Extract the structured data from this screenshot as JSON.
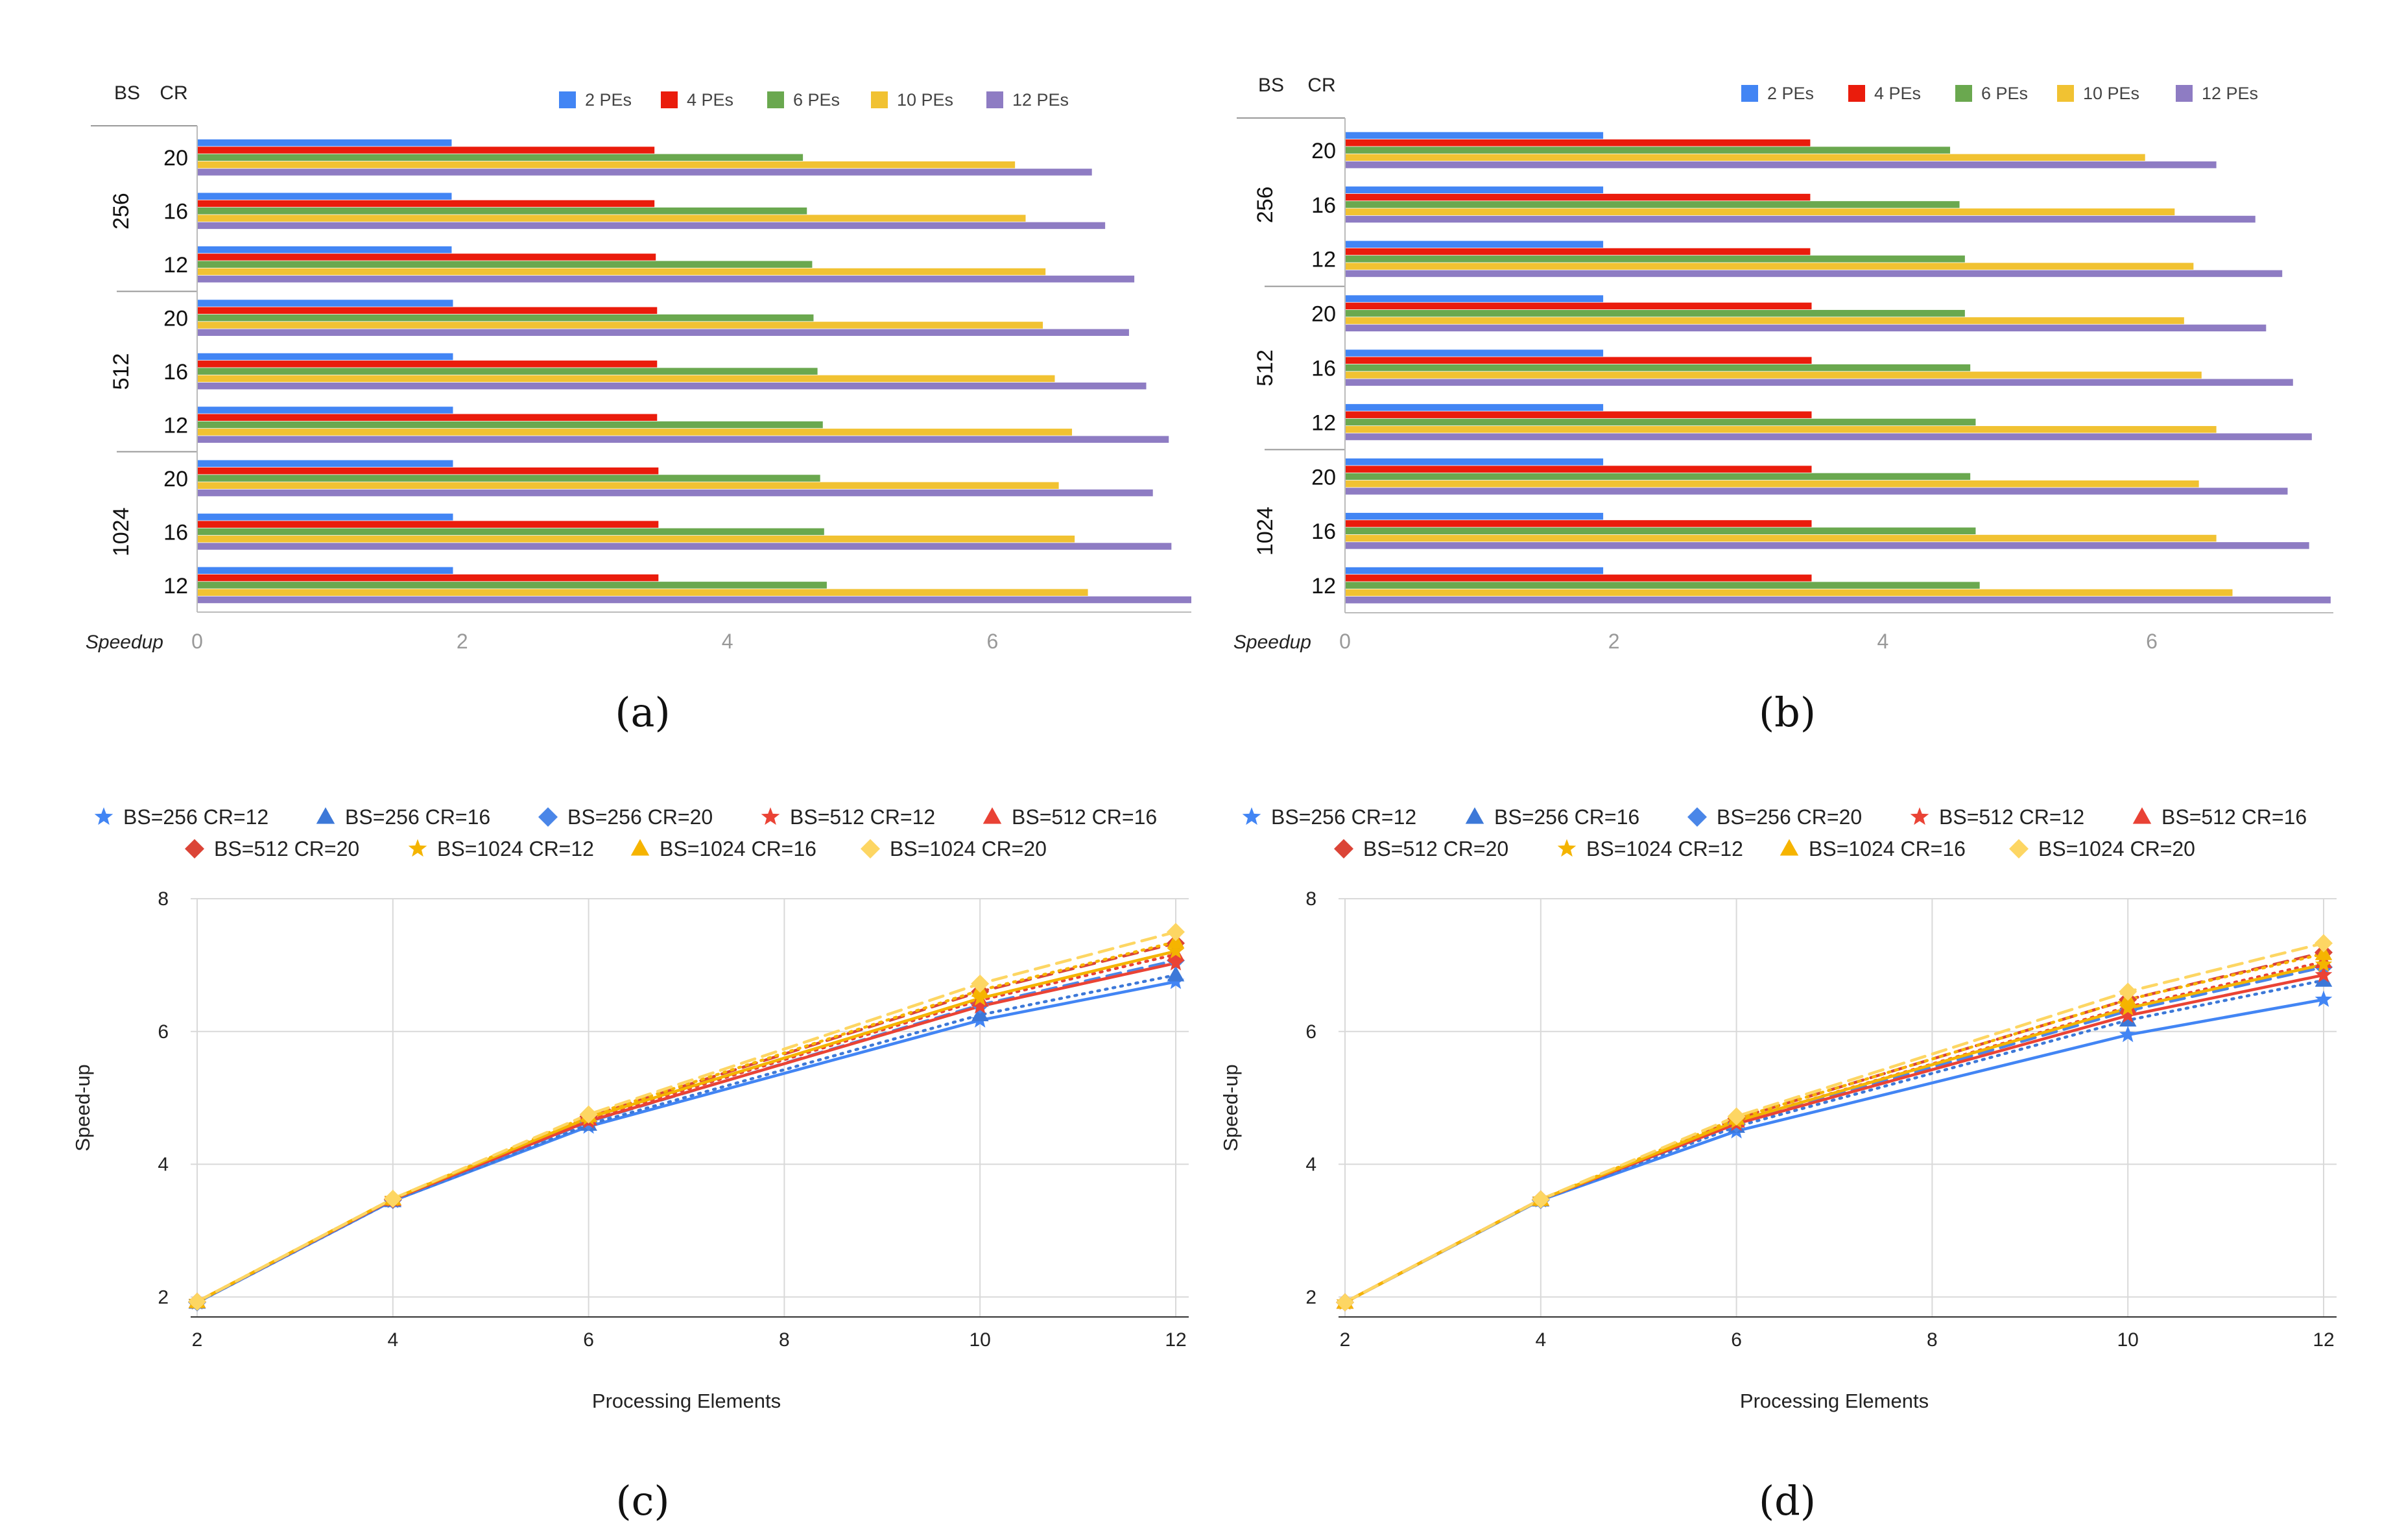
{
  "chart_data": [
    {
      "id": "a",
      "type": "bar",
      "orientation": "horizontal",
      "caption": "(a)",
      "group_header": "BS",
      "category_header": "CR",
      "xlabel": "Speedup",
      "xlim": [
        0,
        7.5
      ],
      "xticks": [
        "0",
        "2",
        "4",
        "6"
      ],
      "groups": [
        {
          "label": "256",
          "rows": [
            {
              "label": "20",
              "values": [
                1.92,
                3.45,
                4.57,
                6.17,
                6.75
              ]
            },
            {
              "label": "16",
              "values": [
                1.92,
                3.45,
                4.6,
                6.25,
                6.85
              ]
            },
            {
              "label": "12",
              "values": [
                1.92,
                3.46,
                4.64,
                6.4,
                7.07
              ]
            }
          ]
        },
        {
          "label": "512",
          "rows": [
            {
              "label": "20",
              "values": [
                1.93,
                3.47,
                4.65,
                6.38,
                7.03
              ]
            },
            {
              "label": "16",
              "values": [
                1.93,
                3.47,
                4.68,
                6.47,
                7.16
              ]
            },
            {
              "label": "12",
              "values": [
                1.93,
                3.47,
                4.72,
                6.6,
                7.33
              ]
            }
          ]
        },
        {
          "label": "1024",
          "rows": [
            {
              "label": "20",
              "values": [
                1.93,
                3.48,
                4.7,
                6.5,
                7.21
              ]
            },
            {
              "label": "16",
              "values": [
                1.93,
                3.48,
                4.73,
                6.62,
                7.35
              ]
            },
            {
              "label": "12",
              "values": [
                1.93,
                3.48,
                4.75,
                6.72,
                7.5
              ]
            }
          ]
        }
      ],
      "series": [
        {
          "name": "2 PEs",
          "color": "#4285f4"
        },
        {
          "name": "4 PEs",
          "color": "#ea1c0c"
        },
        {
          "name": "6 PEs",
          "color": "#6aa84f"
        },
        {
          "name": "10 PEs",
          "color": "#f1c232"
        },
        {
          "name": "12 PEs",
          "color": "#8e7cc3"
        }
      ]
    },
    {
      "id": "b",
      "type": "bar",
      "orientation": "horizontal",
      "caption": "(b)",
      "group_header": "BS",
      "category_header": "CR",
      "xlabel": "Speedup",
      "xlim": [
        0,
        7.35
      ],
      "xticks": [
        "0",
        "2",
        "4",
        "6"
      ],
      "groups": [
        {
          "label": "256",
          "rows": [
            {
              "label": "20",
              "values": [
                1.92,
                3.46,
                4.5,
                5.95,
                6.48
              ]
            },
            {
              "label": "16",
              "values": [
                1.92,
                3.46,
                4.57,
                6.17,
                6.77
              ]
            },
            {
              "label": "12",
              "values": [
                1.92,
                3.46,
                4.61,
                6.31,
                6.97
              ]
            }
          ]
        },
        {
          "label": "512",
          "rows": [
            {
              "label": "20",
              "values": [
                1.92,
                3.47,
                4.61,
                6.24,
                6.85
              ]
            },
            {
              "label": "16",
              "values": [
                1.92,
                3.47,
                4.65,
                6.37,
                7.05
              ]
            },
            {
              "label": "12",
              "values": [
                1.92,
                3.47,
                4.69,
                6.48,
                7.19
              ]
            }
          ]
        },
        {
          "label": "1024",
          "rows": [
            {
              "label": "20",
              "values": [
                1.92,
                3.47,
                4.65,
                6.35,
                7.01
              ]
            },
            {
              "label": "16",
              "values": [
                1.92,
                3.47,
                4.69,
                6.48,
                7.17
              ]
            },
            {
              "label": "12",
              "values": [
                1.92,
                3.47,
                4.72,
                6.6,
                7.33
              ]
            }
          ]
        }
      ],
      "series": [
        {
          "name": "2 PEs",
          "color": "#4285f4"
        },
        {
          "name": "4 PEs",
          "color": "#ea1c0c"
        },
        {
          "name": "6 PEs",
          "color": "#6aa84f"
        },
        {
          "name": "10 PEs",
          "color": "#f1c232"
        },
        {
          "name": "12 PEs",
          "color": "#8e7cc3"
        }
      ]
    },
    {
      "id": "c",
      "type": "line",
      "caption": "(c)",
      "xlabel": "Processing Elements",
      "ylabel": "Speed-up",
      "x": [
        2,
        4,
        6,
        10,
        12
      ],
      "xlim": [
        2,
        12
      ],
      "ylim": [
        1.7,
        8
      ],
      "xticks": [
        2,
        4,
        6,
        8,
        10,
        12
      ],
      "yticks": [
        2,
        4,
        6,
        8
      ],
      "series": [
        {
          "name": "BS=256 CR=12",
          "color": "#4285f4",
          "marker": "star",
          "dash": "solid",
          "values": [
            1.92,
            3.45,
            4.57,
            6.17,
            6.75
          ]
        },
        {
          "name": "BS=256 CR=16",
          "color": "#3c78d8",
          "marker": "triangle",
          "dash": "dotted",
          "values": [
            1.92,
            3.45,
            4.6,
            6.25,
            6.85
          ]
        },
        {
          "name": "BS=256 CR=20",
          "color": "#4a86e8",
          "marker": "diamond",
          "dash": "dashed",
          "values": [
            1.92,
            3.46,
            4.64,
            6.4,
            7.07
          ]
        },
        {
          "name": "BS=512 CR=12",
          "color": "#ea4335",
          "marker": "star",
          "dash": "solid",
          "values": [
            1.93,
            3.47,
            4.65,
            6.38,
            7.03
          ]
        },
        {
          "name": "BS=512 CR=16",
          "color": "#e94235",
          "marker": "triangle",
          "dash": "dotted",
          "values": [
            1.93,
            3.47,
            4.68,
            6.47,
            7.16
          ]
        },
        {
          "name": "BS=512 CR=20",
          "color": "#db4437",
          "marker": "diamond",
          "dash": "dashed",
          "values": [
            1.93,
            3.47,
            4.72,
            6.6,
            7.33
          ]
        },
        {
          "name": "BS=1024 CR=12",
          "color": "#f4b400",
          "marker": "star",
          "dash": "solid",
          "values": [
            1.93,
            3.48,
            4.7,
            6.5,
            7.21
          ]
        },
        {
          "name": "BS=1024 CR=16",
          "color": "#f6b400",
          "marker": "triangle",
          "dash": "dotted",
          "values": [
            1.93,
            3.48,
            4.73,
            6.62,
            7.35
          ]
        },
        {
          "name": "BS=1024 CR=20",
          "color": "#fdd663",
          "marker": "diamond",
          "dash": "dashed",
          "values": [
            1.93,
            3.48,
            4.75,
            6.72,
            7.5
          ]
        }
      ]
    },
    {
      "id": "d",
      "type": "line",
      "caption": "(d)",
      "xlabel": "Processing Elements",
      "ylabel": "Speed-up",
      "x": [
        2,
        4,
        6,
        10,
        12
      ],
      "xlim": [
        2,
        12
      ],
      "ylim": [
        1.7,
        8
      ],
      "xticks": [
        2,
        4,
        6,
        8,
        10,
        12
      ],
      "yticks": [
        2,
        4,
        6,
        8
      ],
      "series": [
        {
          "name": "BS=256 CR=12",
          "color": "#4285f4",
          "marker": "star",
          "dash": "solid",
          "values": [
            1.92,
            3.46,
            4.5,
            5.95,
            6.48
          ]
        },
        {
          "name": "BS=256 CR=16",
          "color": "#3c78d8",
          "marker": "triangle",
          "dash": "dotted",
          "values": [
            1.92,
            3.46,
            4.57,
            6.17,
            6.77
          ]
        },
        {
          "name": "BS=256 CR=20",
          "color": "#4a86e8",
          "marker": "diamond",
          "dash": "dashed",
          "values": [
            1.92,
            3.46,
            4.61,
            6.31,
            6.97
          ]
        },
        {
          "name": "BS=512 CR=12",
          "color": "#ea4335",
          "marker": "star",
          "dash": "solid",
          "values": [
            1.92,
            3.47,
            4.61,
            6.24,
            6.85
          ]
        },
        {
          "name": "BS=512 CR=16",
          "color": "#e94235",
          "marker": "triangle",
          "dash": "dotted",
          "values": [
            1.92,
            3.47,
            4.65,
            6.37,
            7.05
          ]
        },
        {
          "name": "BS=512 CR=20",
          "color": "#db4437",
          "marker": "diamond",
          "dash": "dashed",
          "values": [
            1.92,
            3.47,
            4.69,
            6.48,
            7.19
          ]
        },
        {
          "name": "BS=1024 CR=12",
          "color": "#f4b400",
          "marker": "star",
          "dash": "solid",
          "values": [
            1.92,
            3.47,
            4.65,
            6.35,
            7.01
          ]
        },
        {
          "name": "BS=1024 CR=16",
          "color": "#f6b400",
          "marker": "triangle",
          "dash": "dotted",
          "values": [
            1.92,
            3.47,
            4.69,
            6.48,
            7.17
          ]
        },
        {
          "name": "BS=1024 CR=20",
          "color": "#fdd663",
          "marker": "diamond",
          "dash": "dashed",
          "values": [
            1.92,
            3.47,
            4.72,
            6.6,
            7.33
          ]
        }
      ]
    }
  ]
}
